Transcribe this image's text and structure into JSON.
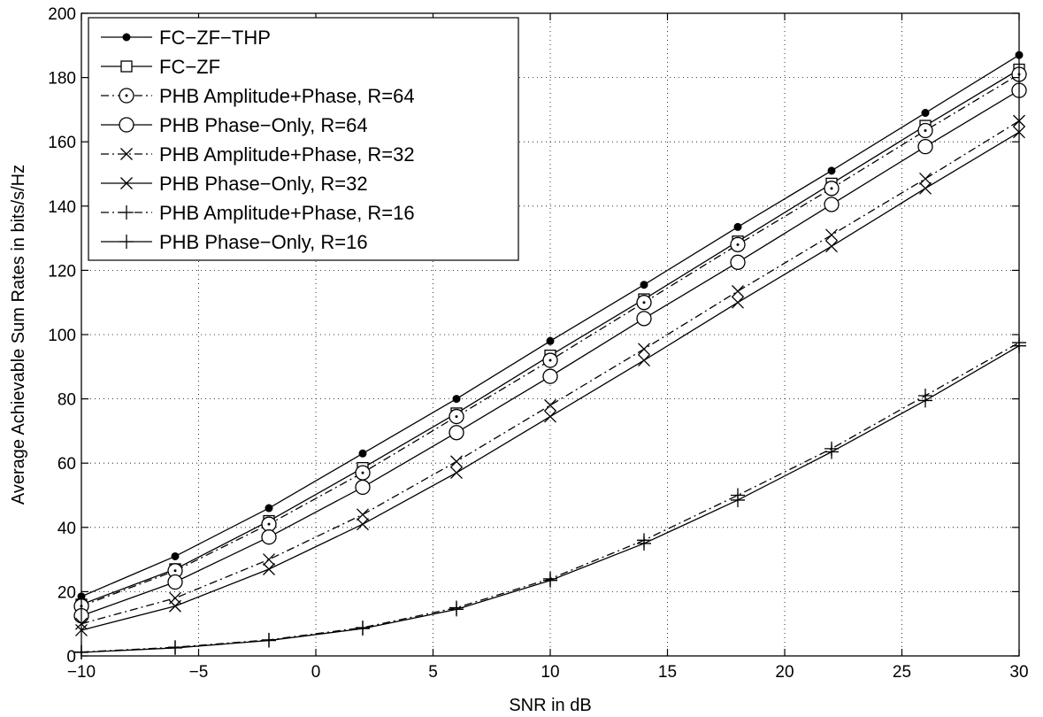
{
  "chart_data": {
    "type": "line",
    "title": "",
    "xlabel": "SNR in dB",
    "ylabel": "Average Achievable Sum Rates in bits/s/Hz",
    "xlim": [
      -10,
      30
    ],
    "ylim": [
      0,
      200
    ],
    "xticks": [
      -10,
      -5,
      0,
      5,
      10,
      15,
      20,
      25,
      30
    ],
    "yticks": [
      0,
      20,
      40,
      60,
      80,
      100,
      120,
      140,
      160,
      180,
      200
    ],
    "x_tick_labels": [
      "−10",
      "−5",
      "0",
      "5",
      "10",
      "15",
      "20",
      "25",
      "30"
    ],
    "y_tick_labels": [
      "0",
      "20",
      "40",
      "60",
      "80",
      "100",
      "120",
      "140",
      "160",
      "180",
      "200"
    ],
    "grid": true,
    "legend_position": "top-left",
    "x": [
      -10,
      -6,
      -2,
      2,
      6,
      10,
      14,
      18,
      22,
      26,
      30
    ],
    "series": [
      {
        "name": "FC−ZF−THP",
        "marker": "dot",
        "line": "solid",
        "values": [
          18.5,
          31,
          46,
          63,
          80,
          98,
          115.5,
          133.5,
          151,
          169,
          187
        ]
      },
      {
        "name": "FC−ZF",
        "marker": "square",
        "line": "solid",
        "values": [
          16,
          27,
          42,
          58.5,
          75.5,
          93.5,
          111,
          129,
          147,
          165,
          182.5
        ]
      },
      {
        "name": "PHB Amplitude+Phase, R=64",
        "marker": "circle-dot",
        "line": "dashdot",
        "values": [
          15.5,
          26.5,
          41,
          57,
          74.5,
          92,
          110,
          128,
          145.5,
          163.5,
          181
        ]
      },
      {
        "name": "PHB Phase−Only, R=64",
        "marker": "circle",
        "line": "solid",
        "values": [
          12.5,
          23,
          37,
          52.5,
          69.5,
          87,
          105,
          122.5,
          140.5,
          158.5,
          176
        ]
      },
      {
        "name": "PHB Amplitude+Phase, R=32",
        "marker": "x",
        "line": "dashdot",
        "values": [
          10,
          18,
          30,
          44,
          60.5,
          78,
          95.5,
          113.5,
          131,
          148.5,
          166.5
        ]
      },
      {
        "name": "PHB Phase−Only, R=32",
        "marker": "x",
        "line": "solid",
        "values": [
          8,
          15.5,
          27,
          41,
          57,
          74.5,
          92,
          110,
          127.5,
          145.5,
          163
        ]
      },
      {
        "name": "PHB Amplitude+Phase, R=16",
        "marker": "plus",
        "line": "dashdot",
        "values": [
          1.2,
          2.7,
          5,
          8.8,
          15,
          24,
          36,
          50,
          64.5,
          81,
          97.5
        ]
      },
      {
        "name": "PHB Phase−Only, R=16",
        "marker": "plus",
        "line": "solid",
        "values": [
          1.1,
          2.5,
          4.8,
          8.5,
          14.5,
          23.5,
          35,
          48.5,
          63.5,
          79.5,
          96.5
        ]
      }
    ]
  }
}
